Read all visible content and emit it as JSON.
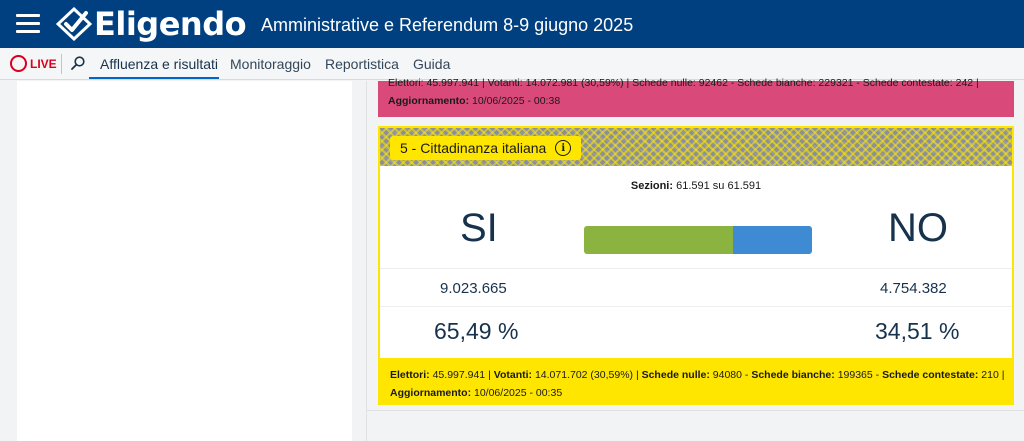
{
  "header": {
    "brand": "Eligendo",
    "title": "Amministrative e Referendum 8-9 giugno 2025"
  },
  "nav": {
    "live": "LIVE",
    "items": [
      "Affluenza e risultati",
      "Monitoraggio",
      "Reportistica",
      "Guida"
    ],
    "active": "Affluenza e risultati"
  },
  "prev_card": {
    "stats_line": "Elettori: 45.997.941 | Votanti: 14.072.981 (30,59%) | Schede nulle: 92462 - Schede bianche: 229321 - Schede contestate: 242 |",
    "update_line_label": "Aggiornamento:",
    "update_line_value": "10/06/2025 - 00:38"
  },
  "card": {
    "title": "5 - Cittadinanza italiana",
    "sezioni_label": "Sezioni:",
    "sezioni_value": "61.591 su 61.591",
    "si_label": "SI",
    "no_label": "NO",
    "si_votes": "9.023.665",
    "no_votes": "4.754.382",
    "si_pct": "65,49 %",
    "no_pct": "34,51 %",
    "si_fraction": 0.6549,
    "footer": {
      "elettori_label": "Elettori:",
      "elettori": "45.997.941",
      "votanti_label": "Votanti:",
      "votanti": "14.071.702 (30,59%)",
      "nulle_label": "Schede nulle:",
      "nulle": "94080",
      "bianche_label": "Schede bianche:",
      "bianche": "199365",
      "contestate_label": "Schede contestate:",
      "contestate": "210",
      "aggiornamento_label": "Aggiornamento:",
      "aggiornamento": "10/06/2025 - 00:35"
    }
  },
  "colors": {
    "header_bg": "#004080",
    "card_yellow": "#ffe600",
    "card_pink": "#d9497a",
    "bar_si": "#8ab43f",
    "bar_no": "#3e8ad3",
    "live_red": "#d9001b"
  },
  "icons": [
    "hamburger-menu-icon",
    "eligendo-logo-icon",
    "live-circle-icon",
    "search-icon",
    "info-icon"
  ]
}
